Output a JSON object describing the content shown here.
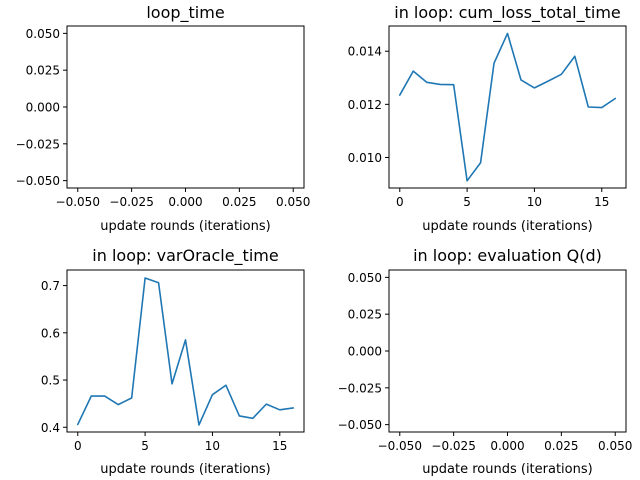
{
  "figure": {
    "background": "#ffffff",
    "line_color": "#1f77b4"
  },
  "chart_data": [
    {
      "type": "line",
      "title": "loop_time",
      "xlabel": "update rounds (iterations)",
      "ylabel": "",
      "xlim": [
        -0.055,
        0.055
      ],
      "ylim": [
        -0.055,
        0.055
      ],
      "xticks": [
        -0.05,
        -0.025,
        0.0,
        0.025,
        0.05
      ],
      "xtick_labels": [
        "−0.050",
        "−0.025",
        "0.000",
        "0.025",
        "0.050"
      ],
      "yticks": [
        -0.05,
        -0.025,
        0.0,
        0.025,
        0.05
      ],
      "ytick_labels": [
        "−0.050",
        "−0.025",
        "0.000",
        "0.025",
        "0.050"
      ],
      "x": [],
      "y": []
    },
    {
      "type": "line",
      "title": "in loop: cum_loss_total_time",
      "xlabel": "update rounds (iterations)",
      "ylabel": "",
      "xlim": [
        -0.8,
        16.8
      ],
      "ylim": [
        0.00885,
        0.01495
      ],
      "xticks": [
        0,
        5,
        10,
        15
      ],
      "xtick_labels": [
        "0",
        "5",
        "10",
        "15"
      ],
      "yticks": [
        0.01,
        0.012,
        0.014
      ],
      "ytick_labels": [
        "0.010",
        "0.012",
        "0.014"
      ],
      "x": [
        0,
        1,
        2,
        3,
        4,
        5,
        6,
        7,
        8,
        9,
        10,
        11,
        12,
        13,
        14,
        15,
        16
      ],
      "y": [
        0.01235,
        0.01325,
        0.01283,
        0.01275,
        0.01274,
        0.00912,
        0.0098,
        0.01355,
        0.01467,
        0.01292,
        0.01262,
        0.01287,
        0.01313,
        0.01381,
        0.0119,
        0.01188,
        0.01222
      ]
    },
    {
      "type": "line",
      "title": "in loop: varOracle_time",
      "xlabel": "update rounds (iterations)",
      "ylabel": "",
      "xlim": [
        -0.8,
        16.8
      ],
      "ylim": [
        0.39,
        0.733
      ],
      "xticks": [
        0,
        5,
        10,
        15
      ],
      "xtick_labels": [
        "0",
        "5",
        "10",
        "15"
      ],
      "yticks": [
        0.4,
        0.5,
        0.6,
        0.7
      ],
      "ytick_labels": [
        "0.4",
        "0.5",
        "0.6",
        "0.7"
      ],
      "x": [
        0,
        1,
        2,
        3,
        4,
        5,
        6,
        7,
        8,
        9,
        10,
        11,
        12,
        13,
        14,
        15,
        16
      ],
      "y": [
        0.406,
        0.466,
        0.466,
        0.448,
        0.462,
        0.716,
        0.706,
        0.492,
        0.585,
        0.405,
        0.469,
        0.489,
        0.424,
        0.419,
        0.449,
        0.437,
        0.441
      ]
    },
    {
      "type": "line",
      "title": "in loop: evaluation Q(d)",
      "xlabel": "update rounds (iterations)",
      "ylabel": "",
      "xlim": [
        -0.055,
        0.055
      ],
      "ylim": [
        -0.055,
        0.055
      ],
      "xticks": [
        -0.05,
        -0.025,
        0.0,
        0.025,
        0.05
      ],
      "xtick_labels": [
        "−0.050",
        "−0.025",
        "0.000",
        "0.025",
        "0.050"
      ],
      "yticks": [
        -0.05,
        -0.025,
        0.0,
        0.025,
        0.05
      ],
      "ytick_labels": [
        "−0.050",
        "−0.025",
        "0.000",
        "0.025",
        "0.050"
      ],
      "x": [],
      "y": []
    }
  ]
}
